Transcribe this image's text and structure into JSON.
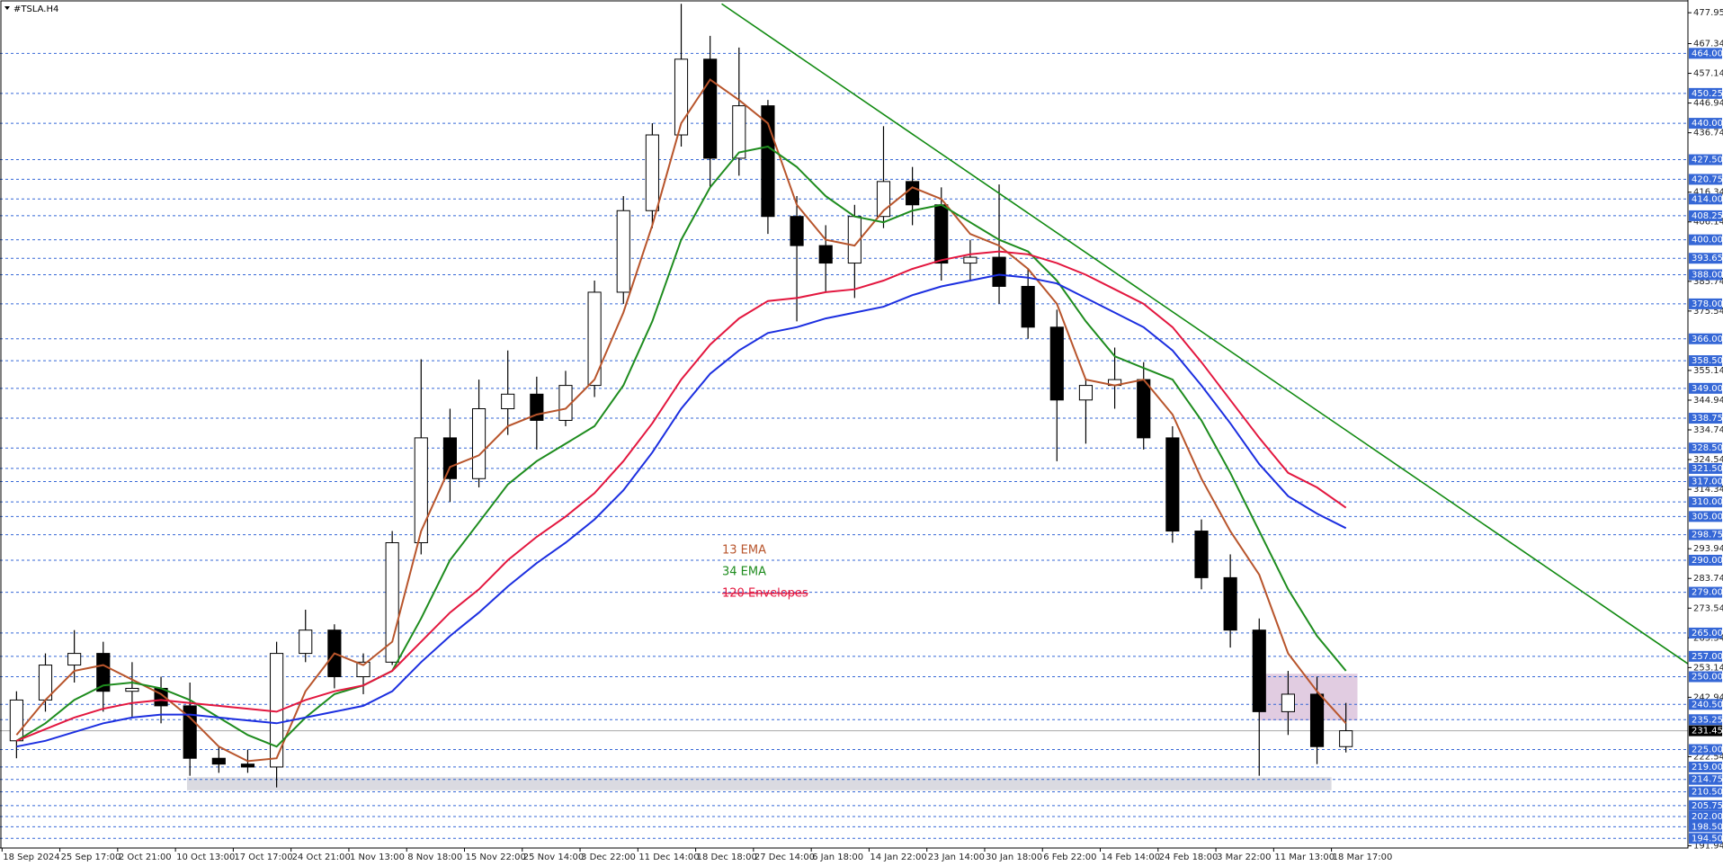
{
  "chart_data": {
    "type": "candlestick",
    "title": "#TSLA.H4",
    "categories": [
      "18 Sep 2024",
      null,
      "25 Sep 17:00",
      null,
      "2 Oct 21:00",
      null,
      "10 Oct 13:00",
      null,
      "17 Oct 17:00",
      null,
      "24 Oct 21:00",
      null,
      "1 Nov 13:00",
      null,
      "8 Nov 18:00",
      null,
      "15 Nov 22:00",
      null,
      "25 Nov 14:00",
      null,
      "3 Dec 22:00",
      null,
      "11 Dec 14:00",
      null,
      "18 Dec 18:00",
      null,
      "27 Dec 14:00",
      null,
      "6 Jan 18:00",
      null,
      "14 Jan 22:00",
      null,
      "23 Jan 14:00",
      null,
      "30 Jan 18:00",
      null,
      "6 Feb 22:00",
      null,
      "14 Feb 14:00",
      null,
      "24 Feb 18:00",
      null,
      "3 Mar 22:00",
      null,
      "11 Mar 13:00",
      null,
      "18 Mar 17:00"
    ],
    "open": [
      228,
      242,
      254,
      258,
      245,
      246,
      240,
      222,
      220,
      219,
      258,
      266,
      250,
      255,
      296,
      332,
      318,
      342,
      347,
      338,
      350,
      382,
      410,
      436,
      462,
      428,
      446,
      408,
      398,
      392,
      408,
      420,
      412,
      392,
      394,
      384,
      370,
      345,
      350,
      352,
      332,
      300,
      284,
      266,
      238,
      244,
      226
    ],
    "high": [
      245,
      258,
      266,
      262,
      255,
      250,
      248,
      226,
      225,
      262,
      273,
      268,
      258,
      300,
      359,
      342,
      352,
      362,
      353,
      355,
      386,
      415,
      440,
      481,
      470,
      466,
      448,
      415,
      405,
      412,
      439,
      425,
      418,
      400,
      419,
      390,
      376,
      352,
      363,
      358,
      336,
      304,
      292,
      270,
      252,
      250,
      241
    ],
    "low": [
      222,
      238,
      248,
      238,
      236,
      234,
      216,
      217,
      217,
      212,
      255,
      246,
      244,
      254,
      292,
      310,
      315,
      333,
      328,
      336,
      346,
      378,
      404,
      432,
      418,
      422,
      402,
      372,
      382,
      380,
      404,
      405,
      386,
      386,
      378,
      366,
      324,
      330,
      342,
      328,
      296,
      280,
      260,
      216,
      230,
      220,
      224
    ],
    "close": [
      242,
      254,
      258,
      245,
      246,
      240,
      222,
      220,
      219,
      258,
      266,
      250,
      255,
      296,
      332,
      318,
      342,
      347,
      338,
      350,
      382,
      410,
      436,
      462,
      428,
      446,
      408,
      398,
      392,
      408,
      420,
      412,
      392,
      394,
      384,
      370,
      345,
      350,
      352,
      332,
      300,
      284,
      266,
      238,
      244,
      226,
      231.45
    ],
    "up_color": "#ffffff",
    "down_color": "#000000",
    "series": [
      {
        "name": "13 EMA",
        "color": "#b8552c",
        "values": [
          230,
          242,
          252,
          254,
          249,
          244,
          236,
          226,
          221,
          222,
          245,
          258,
          254,
          262,
          300,
          322,
          326,
          336,
          340,
          342,
          352,
          375,
          405,
          440,
          455,
          448,
          440,
          412,
          400,
          398,
          410,
          418,
          414,
          402,
          398,
          390,
          378,
          352,
          350,
          352,
          340,
          318,
          300,
          285,
          258,
          245,
          234
        ]
      },
      {
        "name": "34 EMA",
        "color": "#1e8c1e",
        "values": [
          228,
          234,
          242,
          247,
          248,
          246,
          242,
          236,
          230,
          226,
          236,
          244,
          247,
          252,
          270,
          290,
          303,
          316,
          324,
          330,
          336,
          350,
          372,
          400,
          418,
          430,
          432,
          425,
          415,
          408,
          406,
          410,
          412,
          406,
          400,
          396,
          386,
          372,
          360,
          356,
          352,
          338,
          320,
          300,
          280,
          264,
          252
        ]
      },
      {
        "name": "120 Envelopes",
        "color": "#e3173f",
        "values": [
          228,
          232,
          236,
          239,
          241,
          242,
          241,
          240,
          239,
          238,
          242,
          245,
          247,
          252,
          262,
          272,
          280,
          290,
          298,
          305,
          313,
          324,
          337,
          352,
          364,
          373,
          379,
          380,
          382,
          383,
          386,
          390,
          393,
          395,
          396,
          395,
          392,
          388,
          383,
          378,
          370,
          358,
          345,
          332,
          320,
          315,
          308
        ]
      },
      {
        "color": "#1c2fe0",
        "values": [
          226,
          228,
          231,
          234,
          236,
          237,
          237,
          236,
          235,
          234,
          236,
          238,
          240,
          245,
          255,
          264,
          272,
          281,
          289,
          296,
          304,
          314,
          327,
          342,
          354,
          362,
          368,
          370,
          373,
          375,
          377,
          381,
          384,
          386,
          388,
          387,
          385,
          380,
          375,
          370,
          362,
          350,
          337,
          323,
          312,
          306,
          301
        ]
      }
    ],
    "ylim": [
      191.5,
      481.7
    ],
    "yticks": [
      477.95,
      467.34,
      457.14,
      446.94,
      436.74,
      416.34,
      406.14,
      385.74,
      375.54,
      355.14,
      344.94,
      334.74,
      324.54,
      314.34,
      293.94,
      283.74,
      273.54,
      263.34,
      253.14,
      242.94,
      222.54,
      191.94
    ],
    "levels": {
      "color": "#3567d6",
      "lines": [
        {
          "value": 464,
          "label": "464.00"
        },
        450.25,
        {
          "value": 440,
          "label": "440.00"
        },
        {
          "value": 427.5,
          "label": "427.50"
        },
        420.75,
        {
          "value": 414,
          "label": "414.00"
        },
        408.25,
        {
          "value": 400,
          "label": "400.00"
        },
        393.65,
        {
          "value": 388,
          "label": "388.00"
        },
        {
          "value": 378,
          "label": "378.00"
        },
        {
          "value": 366,
          "label": "366.00"
        },
        {
          "value": 358.5,
          "label": "358.50"
        },
        {
          "value": 349,
          "label": "349.00"
        },
        338.75,
        {
          "value": 328.5,
          "label": "328.50"
        },
        {
          "value": 321.5,
          "label": "321.50"
        },
        {
          "value": 317,
          "label": "317.00"
        },
        {
          "value": 310,
          "label": "310.00"
        },
        {
          "value": 305,
          "label": "305.00"
        },
        298.75,
        {
          "value": 290,
          "label": "290.00"
        },
        {
          "value": 279,
          "label": "279.00"
        },
        {
          "value": 265,
          "label": "265.00"
        },
        {
          "value": 257,
          "label": "257.00"
        },
        {
          "value": 250,
          "label": "250.00"
        },
        {
          "value": 240.5,
          "label": "240.50"
        },
        235.25,
        {
          "value": 225,
          "label": "225.00"
        },
        {
          "value": 219,
          "label": "219.00"
        },
        214.75,
        {
          "value": 210.5,
          "label": "210.50"
        },
        205.75,
        {
          "value": 202,
          "label": "202.00"
        },
        {
          "value": 198.5,
          "label": "198.50"
        },
        {
          "value": 194.5,
          "label": "194.50"
        }
      ]
    },
    "current_price": 231.45,
    "trend_line": {
      "color": "#118a11",
      "points": [
        {
          "x": 24.4,
          "y": 481
        },
        {
          "x": 57.9,
          "y": 254
        }
      ]
    },
    "zones": [
      {
        "from": 5.9,
        "to": 45.5,
        "low": 211,
        "high": 215.5,
        "color": "#d4d4dc"
      },
      {
        "from": 43.0,
        "to": 46.4,
        "low": 235,
        "high": 251,
        "color": "#dcc3dc"
      }
    ]
  }
}
